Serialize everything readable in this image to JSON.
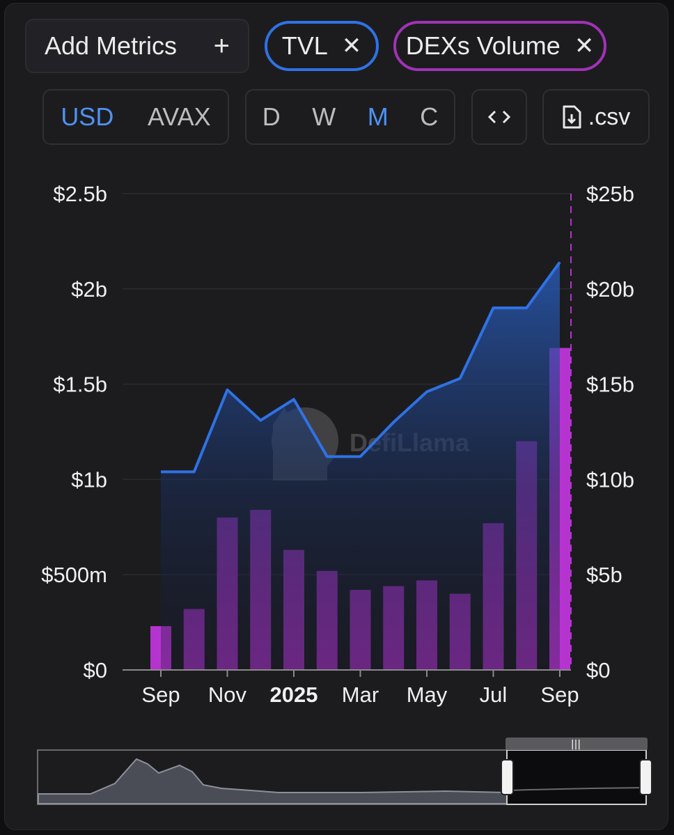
{
  "toolbar": {
    "add_metrics_label": "Add Metrics",
    "add_icon": "plus-icon",
    "metric_pills": [
      {
        "label": "TVL",
        "color": "#2f72e4",
        "close_icon": "close-icon"
      },
      {
        "label": "DEXs Volume",
        "color": "#a132b6",
        "close_icon": "close-icon"
      }
    ],
    "currency_options": [
      "USD",
      "AVAX"
    ],
    "selected_currency": "USD",
    "period_options": [
      "D",
      "W",
      "M",
      "C"
    ],
    "selected_period": "M",
    "embed_icon": "code-icon",
    "csv_label": ".csv",
    "csv_icon": "file-download-icon"
  },
  "colors": {
    "accent_active": "#4f92f0",
    "tvl_line": "#2f72e4",
    "dex_bar": "#8e2ea8",
    "dex_bar_highlight": "#b534cf"
  },
  "watermark": "DefiLlama",
  "chart_data": {
    "type": "bar+line",
    "x_tick_labels": [
      "Sep",
      "Nov",
      "2025",
      "Mar",
      "May",
      "Jul",
      "Sep"
    ],
    "x_tick_bold": "2025",
    "left_axis": {
      "ticks": [
        "$0",
        "$500m",
        "$1b",
        "$1.5b",
        "$2b",
        "$2.5b"
      ],
      "range": [
        0,
        2.5
      ],
      "unit": "billions USD"
    },
    "right_axis": {
      "ticks": [
        "$0",
        "$5b",
        "$10b",
        "$15b",
        "$20b",
        "$25b"
      ],
      "range": [
        0,
        25
      ],
      "unit": "billions USD"
    },
    "grid": true,
    "months": [
      "2024-09",
      "2024-10",
      "2024-11",
      "2024-12",
      "2025-01",
      "2025-02",
      "2025-03",
      "2025-04",
      "2025-05",
      "2025-06",
      "2025-07",
      "2025-08",
      "2025-09"
    ],
    "series": [
      {
        "name": "TVL",
        "type": "area-line",
        "axis": "left",
        "values": [
          1.04,
          1.04,
          1.47,
          1.31,
          1.42,
          1.12,
          1.12,
          1.3,
          1.46,
          1.53,
          1.9,
          1.9,
          2.14
        ]
      },
      {
        "name": "DEXs Volume",
        "type": "bar",
        "axis": "right",
        "values": [
          2.3,
          3.2,
          8.0,
          8.4,
          6.3,
          5.2,
          4.2,
          4.4,
          4.7,
          4.0,
          7.7,
          12.0,
          16.9
        ]
      }
    ],
    "brush_selection": "last 3 months"
  }
}
